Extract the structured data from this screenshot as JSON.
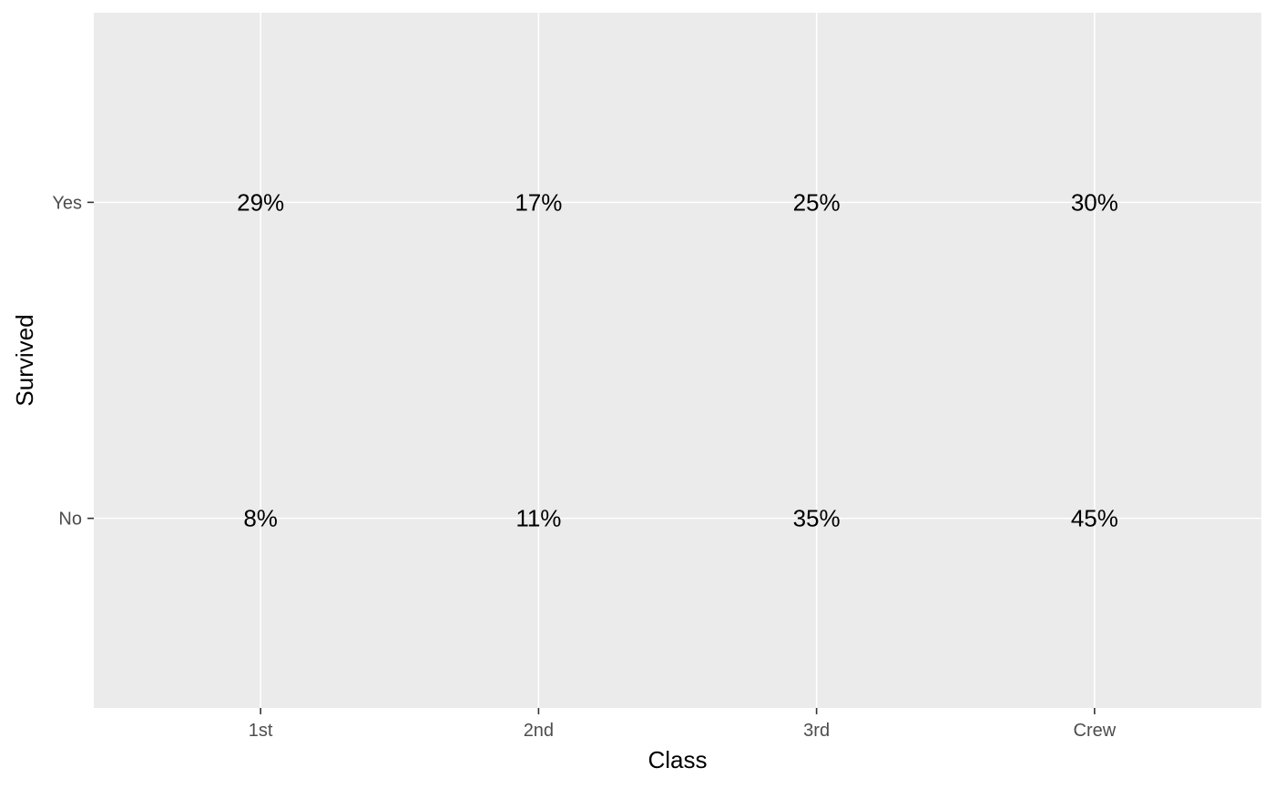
{
  "chart_data": {
    "type": "table",
    "xlabel": "Class",
    "ylabel": "Survived",
    "x_categories": [
      "1st",
      "2nd",
      "3rd",
      "Crew"
    ],
    "y_categories": [
      "No",
      "Yes"
    ],
    "grid": true,
    "legend": "none",
    "cells": [
      {
        "x": "1st",
        "y": "Yes",
        "label": "29%"
      },
      {
        "x": "2nd",
        "y": "Yes",
        "label": "17%"
      },
      {
        "x": "3rd",
        "y": "Yes",
        "label": "25%"
      },
      {
        "x": "Crew",
        "y": "Yes",
        "label": "30%"
      },
      {
        "x": "1st",
        "y": "No",
        "label": "8%"
      },
      {
        "x": "2nd",
        "y": "No",
        "label": "11%"
      },
      {
        "x": "3rd",
        "y": "No",
        "label": "35%"
      },
      {
        "x": "Crew",
        "y": "No",
        "label": "45%"
      }
    ]
  }
}
